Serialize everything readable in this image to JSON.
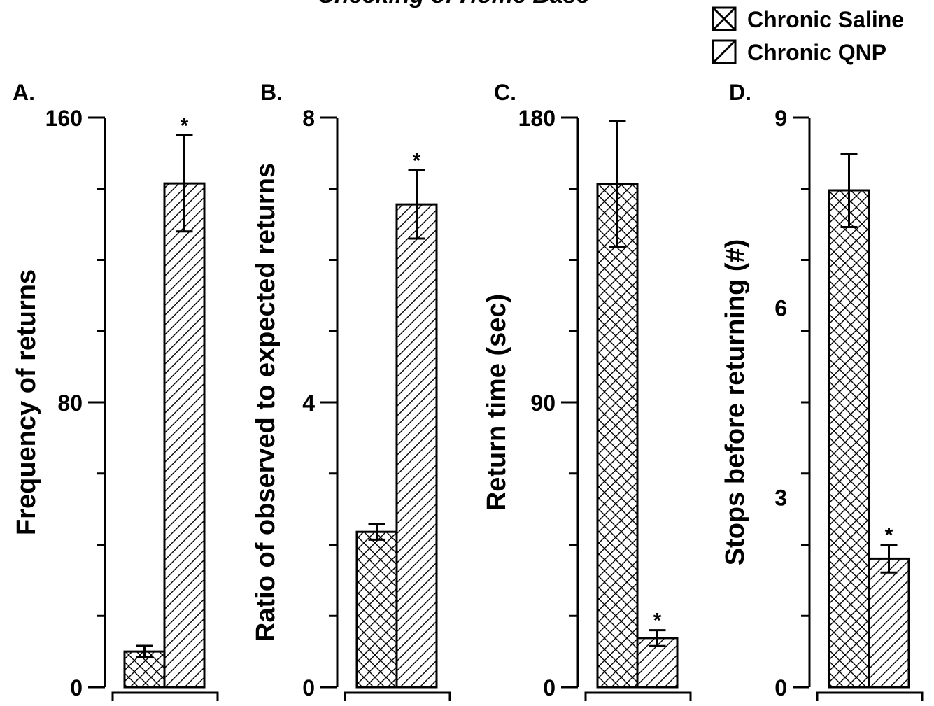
{
  "figure": {
    "title": "Checking of Home Base",
    "legend": [
      {
        "label": "Chronic Saline",
        "pattern": "crosshatch"
      },
      {
        "label": "Chronic QNP",
        "pattern": "diagonal"
      }
    ]
  },
  "chart_data": [
    {
      "type": "bar",
      "panel": "A.",
      "ylabel": "Frequency of returns",
      "ylim": [
        0,
        160
      ],
      "yticks": [
        0,
        80,
        160
      ],
      "series": [
        {
          "name": "Chronic Saline",
          "value": 10,
          "error": 1.6,
          "sig": ""
        },
        {
          "name": "Chronic QNP",
          "value": 141.5,
          "error": 13.5,
          "sig": "*"
        }
      ]
    },
    {
      "type": "bar",
      "panel": "B.",
      "ylabel": "Ratio of observed to expected returns",
      "ylim": [
        0,
        8
      ],
      "yticks": [
        0,
        4,
        8
      ],
      "series": [
        {
          "name": "Chronic Saline",
          "value": 2.18,
          "error": 0.11,
          "sig": ""
        },
        {
          "name": "Chronic QNP",
          "value": 6.78,
          "error": 0.48,
          "sig": "*"
        }
      ]
    },
    {
      "type": "bar",
      "panel": "C.",
      "ylabel": "Return time (sec)",
      "ylim": [
        0,
        180
      ],
      "yticks": [
        0,
        90,
        180
      ],
      "series": [
        {
          "name": "Chronic Saline",
          "value": 159,
          "error": 20,
          "sig": ""
        },
        {
          "name": "Chronic QNP",
          "value": 15.5,
          "error": 2.5,
          "sig": "*"
        }
      ]
    },
    {
      "type": "bar",
      "panel": "D.",
      "ylabel": "Stops before returning (#)",
      "ylim": [
        0,
        9
      ],
      "yticks": [
        0,
        3,
        6,
        9
      ],
      "series": [
        {
          "name": "Chronic Saline",
          "value": 7.85,
          "error": 0.58,
          "sig": ""
        },
        {
          "name": "Chronic QNP",
          "value": 2.03,
          "error": 0.22,
          "sig": "*"
        }
      ]
    }
  ]
}
